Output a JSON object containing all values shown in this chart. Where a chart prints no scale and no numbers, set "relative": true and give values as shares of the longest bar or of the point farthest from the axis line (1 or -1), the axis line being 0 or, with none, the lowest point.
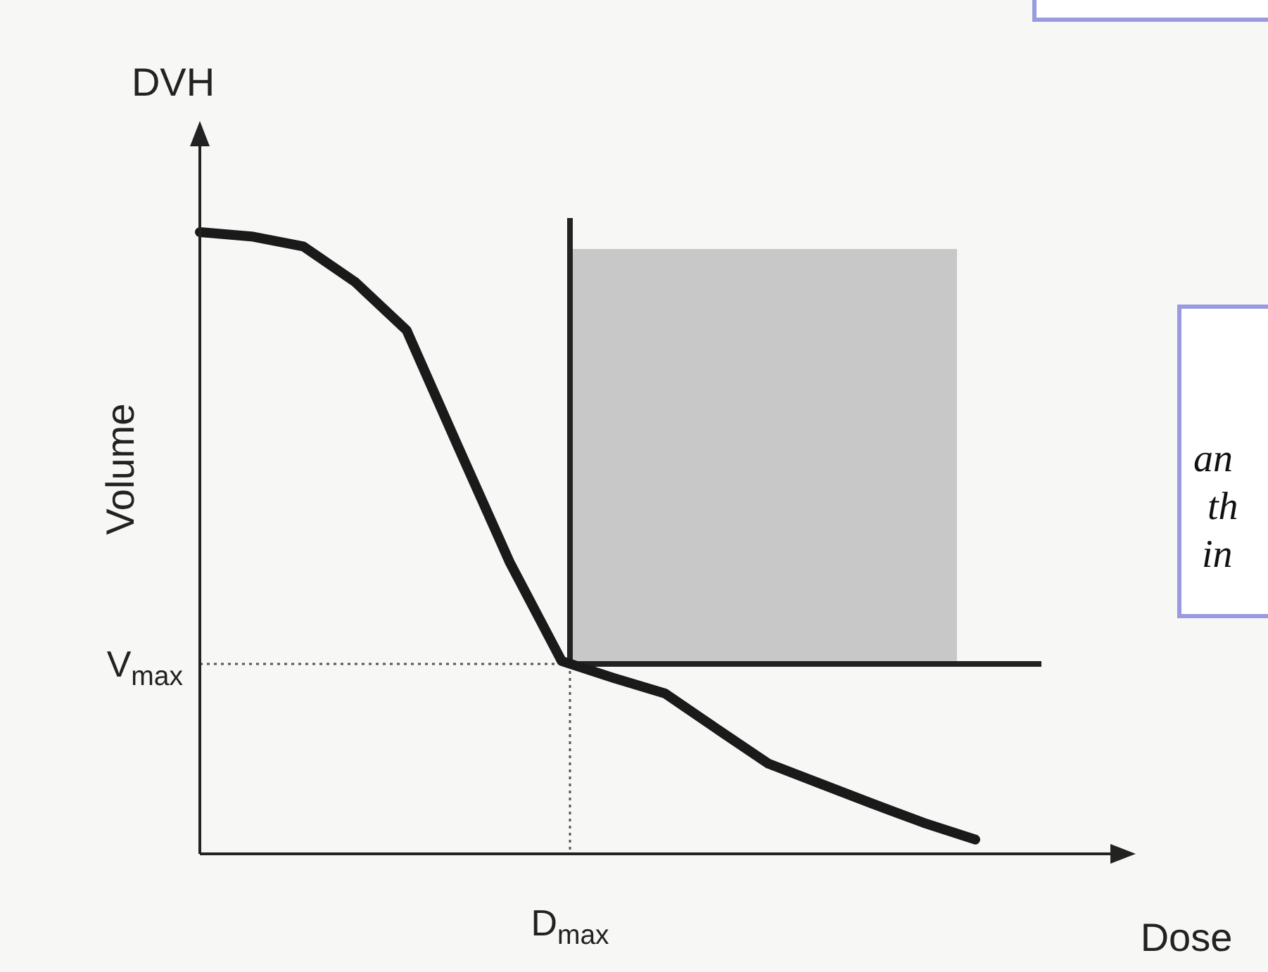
{
  "chart_data": {
    "type": "line",
    "relative": true,
    "title": "DVH",
    "ylabel": "Volume",
    "xlabel": "Dose",
    "categories": [
      null,
      null,
      null,
      null,
      null,
      null,
      null,
      null,
      null,
      null,
      null,
      null,
      null,
      null,
      null,
      null
    ],
    "series": [
      {
        "color": "#1a1a1a",
        "values": [
          1,
          0.993,
          0.977,
          0.92,
          0.842,
          0.654,
          0.468,
          0.31,
          0.283,
          0.258,
          0.201,
          0.145,
          0.113,
          0.081,
          0.05,
          0.023
        ]
      }
    ],
    "annotations": [
      "D$_{max}$",
      "V$_{max}$",
      "an",
      "th",
      "in"
    ],
    "grid": false,
    "marker": "none",
    "line_style": "solid"
  }
}
